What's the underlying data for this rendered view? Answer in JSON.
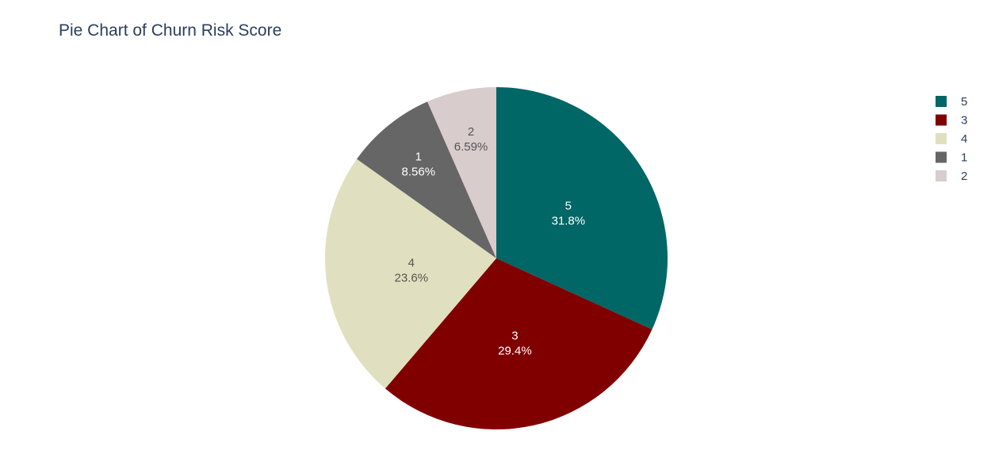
{
  "chart_data": {
    "type": "pie",
    "title": "Pie Chart of Churn Risk Score",
    "labels": [
      "5",
      "3",
      "4",
      "1",
      "2"
    ],
    "values": [
      31.8,
      29.4,
      23.6,
      8.56,
      6.59
    ],
    "percent_labels": [
      "31.8%",
      "29.4%",
      "23.6%",
      "8.56%",
      "6.59%"
    ],
    "colors": [
      "#006666",
      "#800000",
      "#e0e0c0",
      "#666666",
      "#d8cccc"
    ],
    "label_text_colors": [
      "#ffffff",
      "#ffffff",
      "#555555",
      "#ffffff",
      "#555555"
    ],
    "direction": "clockwise",
    "start": "top",
    "legend": {
      "placement": "top-right",
      "entries": [
        "5",
        "3",
        "4",
        "1",
        "2"
      ]
    }
  }
}
